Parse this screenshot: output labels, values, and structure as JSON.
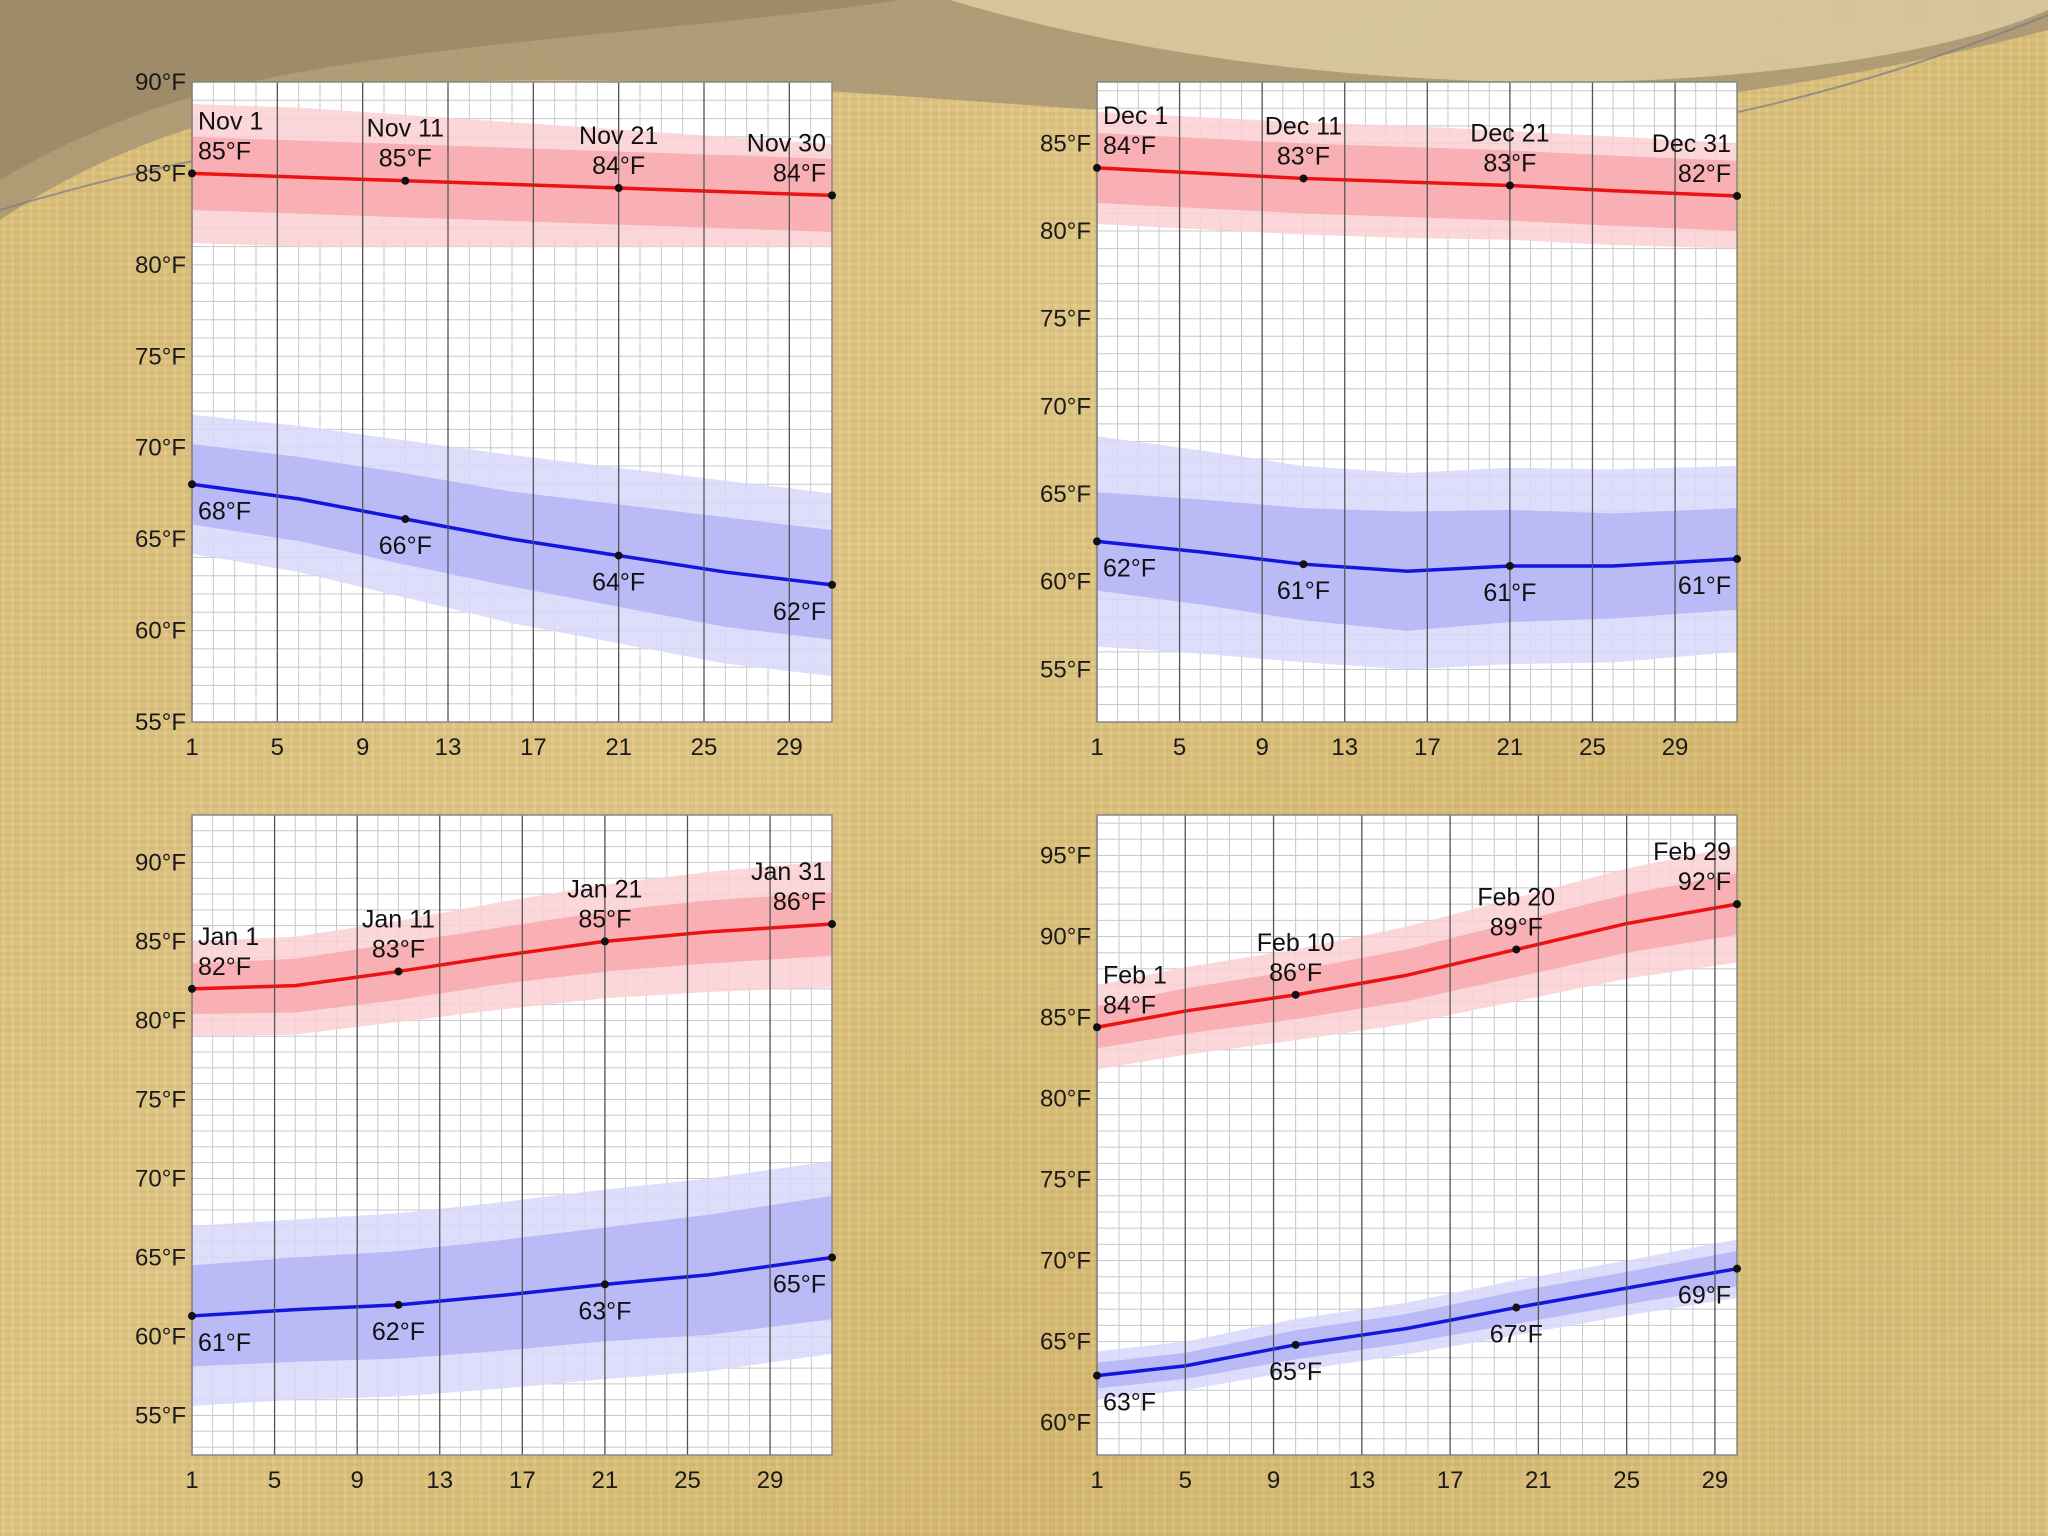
{
  "colors": {
    "high_line": "#ee1111",
    "high_band_outer": "#fbd0d3",
    "high_band_inner": "#f7a9ae",
    "low_line": "#1515e0",
    "low_band_outer": "#d8d8fb",
    "low_band_inner": "#b4b4f6",
    "grid_major": "#555555",
    "grid_minor": "#c8c8c8",
    "plot_bg": "#ffffff"
  },
  "chart_data": [
    {
      "type": "line",
      "ylim": [
        55,
        90
      ],
      "yticks": [
        "90°F",
        "85°F",
        "80°F",
        "75°F",
        "70°F",
        "65°F",
        "60°F",
        "55°F"
      ],
      "yvalues": [
        90,
        85,
        80,
        75,
        70,
        65,
        60,
        55
      ],
      "days": 30,
      "xticks": [
        1,
        5,
        9,
        13,
        17,
        21,
        25,
        29
      ],
      "xtick_labels": [
        "1",
        "5",
        "9",
        "13",
        "17",
        "21",
        "25",
        "29"
      ],
      "series": [
        {
          "x": [
            1,
            6,
            11,
            16,
            21,
            26,
            30
          ],
          "values": [
            85,
            84.8,
            84.6,
            84.4,
            84.2,
            84,
            83.8
          ],
          "band_inner": [
            2,
            2,
            2,
            2,
            2,
            2,
            2
          ],
          "band_outer": [
            3.8,
            3.8,
            3.6,
            3.4,
            3.2,
            3.0,
            2.8
          ]
        },
        {
          "x": [
            1,
            6,
            11,
            16,
            21,
            26,
            30
          ],
          "values": [
            68,
            67.2,
            66.1,
            65,
            64.1,
            63.2,
            62.5
          ],
          "band_inner": [
            2.2,
            2.3,
            2.5,
            2.6,
            2.8,
            3,
            3
          ],
          "band_outer": [
            3.8,
            4,
            4.3,
            4.6,
            4.8,
            5,
            5
          ]
        }
      ],
      "annotations": [
        {
          "x": 1,
          "y": 85,
          "date": "Nov 1",
          "temp": "85°F",
          "kind": "high"
        },
        {
          "x": 11,
          "y": 84.6,
          "date": "Nov 11",
          "temp": "85°F",
          "kind": "high"
        },
        {
          "x": 21,
          "y": 84.2,
          "date": "Nov 21",
          "temp": "84°F",
          "kind": "high"
        },
        {
          "x": 30,
          "y": 83.8,
          "date": "Nov 30",
          "temp": "84°F",
          "kind": "high"
        },
        {
          "x": 1,
          "y": 68,
          "temp": "68°F",
          "kind": "low"
        },
        {
          "x": 11,
          "y": 66.1,
          "temp": "66°F",
          "kind": "low"
        },
        {
          "x": 21,
          "y": 64.1,
          "temp": "64°F",
          "kind": "low"
        },
        {
          "x": 30,
          "y": 62.5,
          "temp": "62°F",
          "kind": "low"
        }
      ]
    },
    {
      "type": "line",
      "ylim": [
        52,
        88.5
      ],
      "yticks": [
        "85°F",
        "80°F",
        "75°F",
        "70°F",
        "65°F",
        "60°F",
        "55°F"
      ],
      "yvalues": [
        85,
        80,
        75,
        70,
        65,
        60,
        55
      ],
      "days": 31,
      "xticks": [
        1,
        5,
        9,
        13,
        17,
        21,
        25,
        29
      ],
      "xtick_labels": [
        "1",
        "5",
        "9",
        "13",
        "17",
        "21",
        "25",
        "29"
      ],
      "series": [
        {
          "x": [
            1,
            6,
            11,
            16,
            21,
            26,
            31
          ],
          "values": [
            83.6,
            83.3,
            83,
            82.8,
            82.6,
            82.3,
            82
          ],
          "band_inner": [
            2,
            2,
            2,
            2,
            2,
            2,
            2
          ],
          "band_outer": [
            3.2,
            3.2,
            3.2,
            3.2,
            3.1,
            3.1,
            3
          ]
        },
        {
          "x": [
            1,
            6,
            11,
            16,
            21,
            26,
            31
          ],
          "values": [
            62.3,
            61.7,
            61,
            60.6,
            60.9,
            60.9,
            61.3
          ],
          "band_inner": [
            2.8,
            3,
            3.2,
            3.4,
            3.2,
            3,
            2.9
          ],
          "band_outer": [
            6,
            5.8,
            5.6,
            5.6,
            5.6,
            5.5,
            5.3
          ]
        }
      ],
      "annotations": [
        {
          "x": 1,
          "y": 83.6,
          "date": "Dec 1",
          "temp": "84°F",
          "kind": "high"
        },
        {
          "x": 11,
          "y": 83,
          "date": "Dec 11",
          "temp": "83°F",
          "kind": "high"
        },
        {
          "x": 21,
          "y": 82.6,
          "date": "Dec 21",
          "temp": "83°F",
          "kind": "high"
        },
        {
          "x": 31,
          "y": 82,
          "date": "Dec 31",
          "temp": "82°F",
          "kind": "high"
        },
        {
          "x": 1,
          "y": 62.3,
          "temp": "62°F",
          "kind": "low"
        },
        {
          "x": 11,
          "y": 61,
          "temp": "61°F",
          "kind": "low"
        },
        {
          "x": 21,
          "y": 60.9,
          "temp": "61°F",
          "kind": "low"
        },
        {
          "x": 31,
          "y": 61.3,
          "temp": "61°F",
          "kind": "low"
        }
      ]
    },
    {
      "type": "line",
      "ylim": [
        52.5,
        93
      ],
      "yticks": [
        "90°F",
        "85°F",
        "80°F",
        "75°F",
        "70°F",
        "65°F",
        "60°F",
        "55°F"
      ],
      "yvalues": [
        90,
        85,
        80,
        75,
        70,
        65,
        60,
        55
      ],
      "days": 31,
      "xticks": [
        1,
        5,
        9,
        13,
        17,
        21,
        25,
        29
      ],
      "xtick_labels": [
        "1",
        "5",
        "9",
        "13",
        "17",
        "21",
        "25",
        "29"
      ],
      "series": [
        {
          "x": [
            1,
            6,
            11,
            16,
            21,
            26,
            31
          ],
          "values": [
            82,
            82.2,
            83.1,
            84.1,
            85,
            85.6,
            86.1
          ],
          "band_inner": [
            1.6,
            1.7,
            1.8,
            1.8,
            1.9,
            2,
            2
          ],
          "band_outer": [
            3,
            3.1,
            3.2,
            3.4,
            3.6,
            3.8,
            4
          ]
        },
        {
          "x": [
            1,
            6,
            11,
            16,
            21,
            26,
            31
          ],
          "values": [
            61.3,
            61.7,
            62,
            62.6,
            63.3,
            63.9,
            65
          ],
          "band_inner": [
            3.2,
            3.3,
            3.4,
            3.5,
            3.6,
            3.8,
            3.9
          ],
          "band_outer": [
            5.7,
            5.7,
            5.8,
            5.9,
            6,
            6.1,
            6.1
          ]
        }
      ],
      "annotations": [
        {
          "x": 1,
          "y": 82,
          "date": "Jan 1",
          "temp": "82°F",
          "kind": "high"
        },
        {
          "x": 11,
          "y": 83.1,
          "date": "Jan 11",
          "temp": "83°F",
          "kind": "high"
        },
        {
          "x": 21,
          "y": 85,
          "date": "Jan 21",
          "temp": "85°F",
          "kind": "high"
        },
        {
          "x": 31,
          "y": 86.1,
          "date": "Jan 31",
          "temp": "86°F",
          "kind": "high"
        },
        {
          "x": 1,
          "y": 61.3,
          "temp": "61°F",
          "kind": "low"
        },
        {
          "x": 11,
          "y": 62,
          "temp": "62°F",
          "kind": "low"
        },
        {
          "x": 21,
          "y": 63.3,
          "temp": "63°F",
          "kind": "low"
        },
        {
          "x": 31,
          "y": 65,
          "temp": "65°F",
          "kind": "low"
        }
      ]
    },
    {
      "type": "line",
      "ylim": [
        58,
        97.5
      ],
      "yticks": [
        "95°F",
        "90°F",
        "85°F",
        "80°F",
        "75°F",
        "70°F",
        "65°F",
        "60°F"
      ],
      "yvalues": [
        95,
        90,
        85,
        80,
        75,
        70,
        65,
        60
      ],
      "days": 29,
      "xticks": [
        1,
        5,
        9,
        13,
        17,
        21,
        25,
        29
      ],
      "xtick_labels": [
        "1",
        "5",
        "9",
        "13",
        "17",
        "21",
        "25",
        "29"
      ],
      "series": [
        {
          "x": [
            1,
            5,
            10,
            15,
            20,
            25,
            29
          ],
          "values": [
            84.4,
            85.4,
            86.4,
            87.6,
            89.2,
            90.8,
            92
          ],
          "band_inner": [
            1.3,
            1.4,
            1.5,
            1.6,
            1.7,
            1.8,
            1.9
          ],
          "band_outer": [
            2.6,
            2.7,
            2.8,
            3,
            3.2,
            3.4,
            3.6
          ]
        },
        {
          "x": [
            1,
            5,
            10,
            15,
            20,
            25,
            29
          ],
          "values": [
            62.9,
            63.5,
            64.8,
            65.8,
            67.1,
            68.3,
            69.5
          ],
          "band_inner": [
            0.8,
            0.8,
            0.9,
            0.9,
            1,
            1,
            1.1
          ],
          "band_outer": [
            1.5,
            1.5,
            1.6,
            1.6,
            1.7,
            1.7,
            1.8
          ]
        }
      ],
      "annotations": [
        {
          "x": 1,
          "y": 84.4,
          "date": "Feb 1",
          "temp": "84°F",
          "kind": "high"
        },
        {
          "x": 10,
          "y": 86.4,
          "date": "Feb 10",
          "temp": "86°F",
          "kind": "high"
        },
        {
          "x": 20,
          "y": 89.2,
          "date": "Feb 20",
          "temp": "89°F",
          "kind": "high"
        },
        {
          "x": 29,
          "y": 92,
          "date": "Feb 29",
          "temp": "92°F",
          "kind": "high"
        },
        {
          "x": 1,
          "y": 62.9,
          "temp": "63°F",
          "kind": "low"
        },
        {
          "x": 10,
          "y": 64.8,
          "temp": "65°F",
          "kind": "low"
        },
        {
          "x": 20,
          "y": 67.1,
          "temp": "67°F",
          "kind": "low"
        },
        {
          "x": 29,
          "y": 69.5,
          "temp": "69°F",
          "kind": "low"
        }
      ]
    }
  ]
}
